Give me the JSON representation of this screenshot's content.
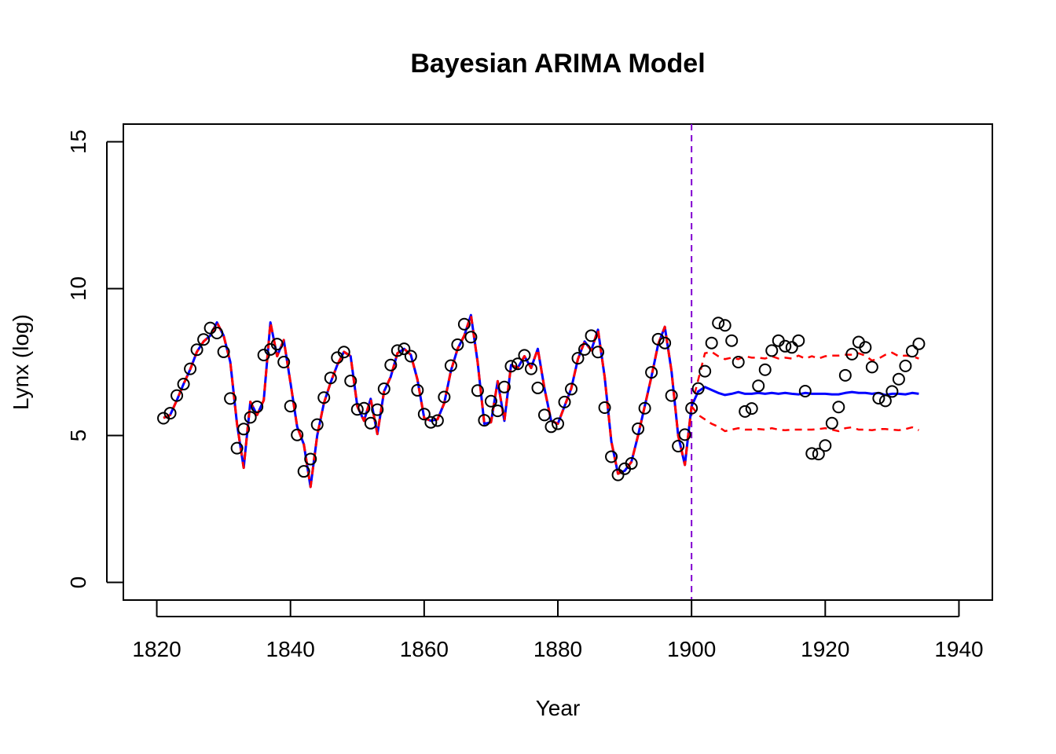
{
  "chart_data": {
    "type": "line",
    "title": "Bayesian ARIMA Model",
    "xlabel": "Year",
    "ylabel": "Lynx (log)",
    "xlim": [
      1815,
      1945
    ],
    "ylim": [
      -0.6,
      15.6
    ],
    "xticks": [
      "1820",
      "1840",
      "1860",
      "1880",
      "1900",
      "1920",
      "1940"
    ],
    "yticks": [
      "0",
      "5",
      "10",
      "15"
    ],
    "grid": false,
    "colors": {
      "points": "#000000",
      "fitted": "#0000ff",
      "interval": "#ff0000",
      "cutoff": "#8000d0"
    },
    "cutoff_year": 1900,
    "observed": {
      "x": [
        1821,
        1822,
        1823,
        1824,
        1825,
        1826,
        1827,
        1828,
        1829,
        1830,
        1831,
        1832,
        1833,
        1834,
        1835,
        1836,
        1837,
        1838,
        1839,
        1840,
        1841,
        1842,
        1843,
        1844,
        1845,
        1846,
        1847,
        1848,
        1849,
        1850,
        1851,
        1852,
        1853,
        1854,
        1855,
        1856,
        1857,
        1858,
        1859,
        1860,
        1861,
        1862,
        1863,
        1864,
        1865,
        1866,
        1867,
        1868,
        1869,
        1870,
        1871,
        1872,
        1873,
        1874,
        1875,
        1876,
        1877,
        1878,
        1879,
        1880,
        1881,
        1882,
        1883,
        1884,
        1885,
        1886,
        1887,
        1888,
        1889,
        1890,
        1891,
        1892,
        1893,
        1894,
        1895,
        1896,
        1897,
        1898,
        1899,
        1900,
        1901,
        1902,
        1903,
        1904,
        1905,
        1906,
        1907,
        1908,
        1909,
        1910,
        1911,
        1912,
        1913,
        1914,
        1915,
        1916,
        1917,
        1918,
        1919,
        1920,
        1921,
        1922,
        1923,
        1924,
        1925,
        1926,
        1927,
        1928,
        1929,
        1930,
        1931,
        1932,
        1933,
        1934
      ],
      "y": [
        5.59,
        5.76,
        6.36,
        6.75,
        7.27,
        7.92,
        8.27,
        8.66,
        8.49,
        7.85,
        6.26,
        4.57,
        5.22,
        5.62,
        5.98,
        7.74,
        7.93,
        8.11,
        7.5,
        6.0,
        5.02,
        3.78,
        4.2,
        5.37,
        6.29,
        6.96,
        7.65,
        7.84,
        6.86,
        5.89,
        5.93,
        5.42,
        5.88,
        6.59,
        7.4,
        7.89,
        7.95,
        7.7,
        6.54,
        5.73,
        5.45,
        5.51,
        6.31,
        7.38,
        8.09,
        8.79,
        8.35,
        6.53,
        5.52,
        6.17,
        5.84,
        6.65,
        7.36,
        7.44,
        7.73,
        7.27,
        6.62,
        5.7,
        5.3,
        5.4,
        6.14,
        6.58,
        7.63,
        7.93,
        8.4,
        7.84,
        5.95,
        4.28,
        3.66,
        3.87,
        4.05,
        5.23,
        5.93,
        7.15,
        8.28,
        8.15,
        6.36,
        4.64,
        5.03,
        5.93,
        6.6,
        7.19,
        8.15,
        8.83,
        8.75,
        8.23,
        7.5,
        5.82,
        5.92,
        6.69,
        7.24,
        7.89,
        8.23,
        8.04,
        8.0,
        8.23,
        6.51,
        4.39,
        4.37,
        4.66,
        5.42,
        5.97,
        7.05,
        7.77,
        8.18,
        8.0,
        7.33,
        6.27,
        6.18,
        6.5,
        6.92,
        7.37,
        7.87,
        8.12
      ]
    },
    "fitted_in_sample": {
      "x": [
        1821,
        1822,
        1823,
        1824,
        1825,
        1826,
        1827,
        1828,
        1829,
        1830,
        1831,
        1832,
        1833,
        1834,
        1835,
        1836,
        1837,
        1838,
        1839,
        1840,
        1841,
        1842,
        1843,
        1844,
        1845,
        1846,
        1847,
        1848,
        1849,
        1850,
        1851,
        1852,
        1853,
        1854,
        1855,
        1856,
        1857,
        1858,
        1859,
        1860,
        1861,
        1862,
        1863,
        1864,
        1865,
        1866,
        1867,
        1868,
        1869,
        1870,
        1871,
        1872,
        1873,
        1874,
        1875,
        1876,
        1877,
        1878,
        1879,
        1880,
        1881,
        1882,
        1883,
        1884,
        1885,
        1886,
        1887,
        1888,
        1889,
        1890,
        1891,
        1892,
        1893,
        1894,
        1895,
        1896,
        1897,
        1898,
        1899,
        1900
      ],
      "y": [
        5.6,
        5.7,
        6.2,
        6.75,
        7.25,
        7.85,
        8.2,
        8.4,
        8.85,
        8.4,
        7.5,
        5.4,
        3.9,
        6.15,
        5.7,
        6.2,
        8.85,
        7.7,
        8.25,
        6.8,
        5.3,
        4.7,
        3.25,
        5.0,
        6.1,
        6.8,
        7.4,
        7.85,
        7.7,
        6.0,
        5.5,
        6.25,
        5.05,
        6.5,
        7.0,
        7.8,
        7.95,
        7.75,
        6.9,
        5.6,
        5.5,
        5.55,
        6.1,
        7.2,
        7.95,
        8.4,
        9.1,
        7.5,
        5.4,
        5.45,
        6.85,
        5.5,
        7.4,
        7.3,
        7.7,
        7.3,
        7.95,
        6.6,
        5.5,
        5.4,
        6.0,
        6.6,
        7.6,
        8.2,
        7.9,
        8.6,
        7.0,
        4.8,
        3.7,
        3.8,
        4.1,
        5.0,
        6.0,
        7.0,
        8.1,
        8.7,
        7.2,
        5.0,
        4.0,
        6.0
      ]
    },
    "forecast_mean": {
      "x": [
        1900,
        1901,
        1902,
        1903,
        1904,
        1905,
        1906,
        1907,
        1908,
        1909,
        1910,
        1911,
        1912,
        1913,
        1914,
        1915,
        1916,
        1917,
        1918,
        1919,
        1920,
        1921,
        1922,
        1923,
        1924,
        1925,
        1926,
        1927,
        1928,
        1929,
        1930,
        1931,
        1932,
        1933,
        1934
      ],
      "y": [
        6.0,
        6.5,
        6.65,
        6.55,
        6.45,
        6.38,
        6.42,
        6.48,
        6.42,
        6.42,
        6.45,
        6.42,
        6.45,
        6.42,
        6.45,
        6.42,
        6.4,
        6.45,
        6.42,
        6.42,
        6.42,
        6.4,
        6.4,
        6.45,
        6.48,
        6.45,
        6.45,
        6.42,
        6.45,
        6.38,
        6.42,
        6.42,
        6.4,
        6.45,
        6.42
      ]
    },
    "interval_upper": {
      "x": [
        1900,
        1901,
        1902,
        1903,
        1904,
        1905,
        1906,
        1907,
        1908,
        1909,
        1910,
        1911,
        1912,
        1913,
        1914,
        1915,
        1916,
        1917,
        1918,
        1919,
        1920,
        1921,
        1922,
        1923,
        1924,
        1925,
        1926,
        1927,
        1928,
        1929,
        1930,
        1931,
        1932,
        1933,
        1934
      ],
      "y": [
        6.0,
        6.9,
        7.8,
        7.85,
        7.7,
        7.6,
        7.65,
        7.6,
        7.7,
        7.65,
        7.65,
        7.62,
        7.7,
        7.62,
        7.65,
        7.62,
        7.72,
        7.62,
        7.7,
        7.62,
        7.7,
        7.72,
        7.72,
        7.75,
        7.75,
        7.8,
        7.72,
        7.55,
        7.62,
        7.75,
        7.82,
        7.7,
        7.72,
        7.7,
        7.62
      ]
    },
    "interval_lower": {
      "x": [
        1900,
        1901,
        1902,
        1903,
        1904,
        1905,
        1906,
        1907,
        1908,
        1909,
        1910,
        1911,
        1912,
        1913,
        1914,
        1915,
        1916,
        1917,
        1918,
        1919,
        1920,
        1921,
        1922,
        1923,
        1924,
        1925,
        1926,
        1927,
        1928,
        1929,
        1930,
        1931,
        1932,
        1933,
        1934
      ],
      "y": [
        6.0,
        5.7,
        5.55,
        5.4,
        5.3,
        5.15,
        5.2,
        5.25,
        5.2,
        5.2,
        5.22,
        5.2,
        5.25,
        5.2,
        5.18,
        5.2,
        5.2,
        5.2,
        5.2,
        5.22,
        5.25,
        5.2,
        5.15,
        5.25,
        5.28,
        5.2,
        5.2,
        5.18,
        5.22,
        5.22,
        5.2,
        5.18,
        5.22,
        5.28,
        5.18
      ]
    }
  }
}
